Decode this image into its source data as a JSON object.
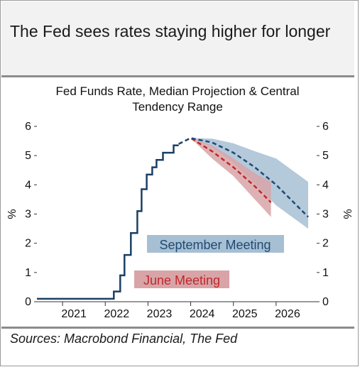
{
  "headline": "The Fed sees rates staying higher for longer",
  "footer": "Sources: Macrobond Financial, The Fed",
  "colors": {
    "actual": "#1b3f63",
    "september": "#1f4a74",
    "september_band": "#a7bfd3",
    "june": "#c0282d",
    "june_band": "#d8a4a7",
    "header_bg": "#f2f2f2"
  },
  "chart_data": {
    "type": "line",
    "title_lines": [
      "Fed Funds Rate, Median Projection & Central",
      "Tendency Range"
    ],
    "ylabel_left": "%",
    "ylabel_right": "%",
    "ylim": [
      0,
      6
    ],
    "yticks": [
      0,
      1,
      2,
      3,
      4,
      5,
      6
    ],
    "xlim": [
      2020.4,
      2026.95
    ],
    "xticks": [
      2021,
      2022,
      2023,
      2024,
      2025,
      2026
    ],
    "xtick_labels": [
      "2021",
      "2022",
      "2023",
      "2024",
      "2025",
      "2026"
    ],
    "grid": false,
    "series": [
      {
        "name": "",
        "style": "step",
        "x": [
          2020.4,
          2022.2,
          2022.2,
          2022.35,
          2022.35,
          2022.45,
          2022.45,
          2022.6,
          2022.6,
          2022.75,
          2022.75,
          2022.85,
          2022.85,
          2022.97,
          2022.97,
          2023.1,
          2023.1,
          2023.2,
          2023.2,
          2023.35,
          2023.35,
          2023.6,
          2023.6,
          2023.72
        ],
        "y": [
          0.1,
          0.1,
          0.35,
          0.35,
          0.9,
          0.9,
          1.6,
          1.6,
          2.35,
          2.35,
          3.1,
          3.1,
          3.85,
          3.85,
          4.35,
          4.35,
          4.6,
          4.6,
          4.85,
          4.85,
          5.1,
          5.1,
          5.35,
          5.35
        ]
      },
      {
        "name": "September Meeting",
        "style": "dashed",
        "x": [
          2023.72,
          2024.0,
          2024.5,
          2025.0,
          2025.5,
          2026.0,
          2026.75
        ],
        "y": [
          5.4,
          5.6,
          5.45,
          5.1,
          4.6,
          4.0,
          2.9
        ],
        "band_upper": [
          5.4,
          5.6,
          5.58,
          5.42,
          5.15,
          4.9,
          4.1
        ],
        "band_lower": [
          5.4,
          5.6,
          5.3,
          4.75,
          4.05,
          3.3,
          2.5
        ]
      },
      {
        "name": "June Meeting",
        "style": "dashed",
        "x": [
          2023.72,
          2024.0,
          2024.5,
          2025.0,
          2025.5,
          2025.88
        ],
        "y": [
          5.4,
          5.6,
          5.15,
          4.6,
          3.95,
          3.4
        ],
        "band_upper": [
          5.4,
          5.6,
          5.35,
          4.9,
          4.4,
          4.1
        ],
        "band_lower": [
          5.4,
          5.6,
          4.9,
          4.3,
          3.5,
          2.9
        ]
      }
    ],
    "annotations": [
      {
        "text": "September Meeting",
        "series": "September Meeting"
      },
      {
        "text": "June Meeting",
        "series": "June Meeting"
      }
    ]
  }
}
